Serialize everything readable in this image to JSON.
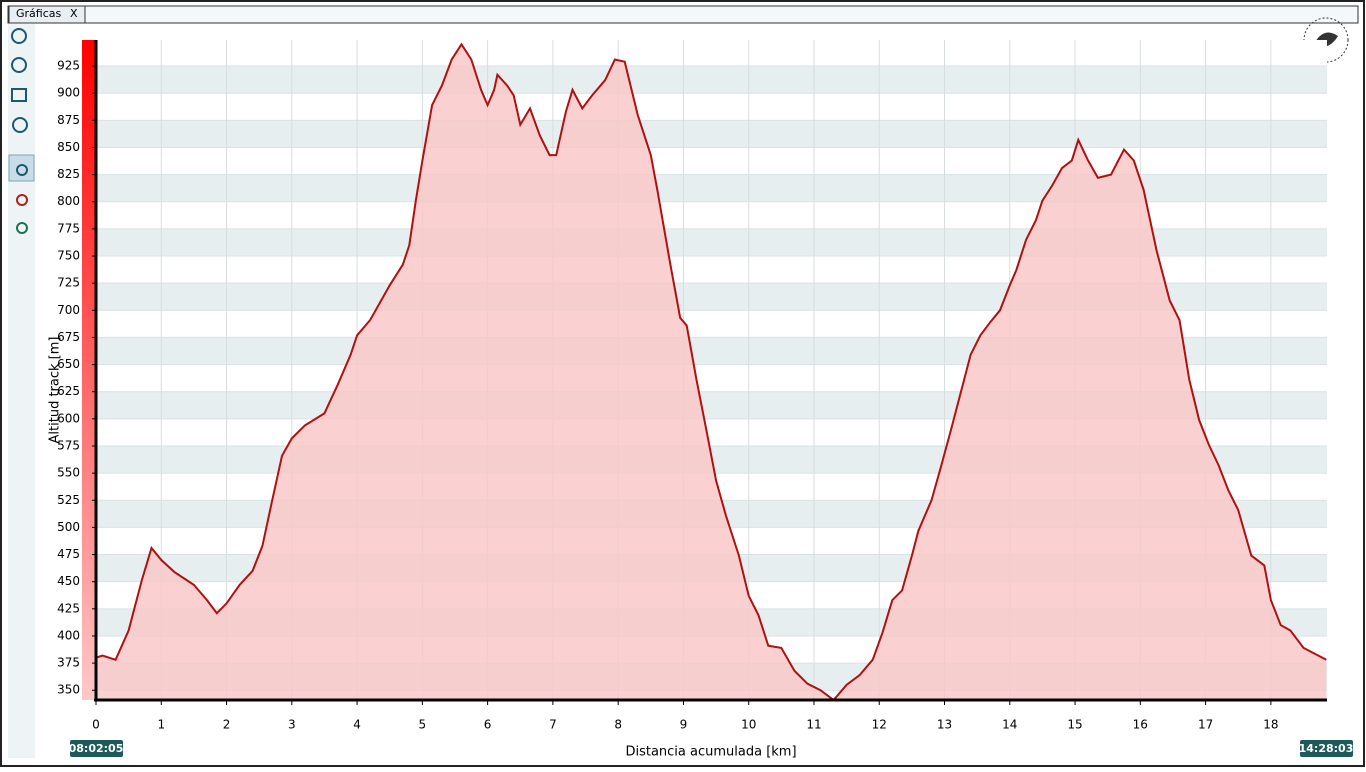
{
  "tab": {
    "title": "Gráficas",
    "close": "X"
  },
  "chart_data": {
    "type": "area",
    "x_label": "Distancia acumulada [km]",
    "y_label": "Altitud track [m]",
    "start_time": "08:02:05",
    "end_time": "14:28:03",
    "x": [
      0,
      0.1,
      0.3,
      0.5,
      0.7,
      0.85,
      1.0,
      1.2,
      1.5,
      1.7,
      1.85,
      2.0,
      2.2,
      2.4,
      2.55,
      2.7,
      2.85,
      3.0,
      3.2,
      3.5,
      3.7,
      3.9,
      4.0,
      4.2,
      4.35,
      4.5,
      4.7,
      4.8,
      4.9,
      5.0,
      5.15,
      5.3,
      5.45,
      5.6,
      5.75,
      5.9,
      6.0,
      6.1,
      6.15,
      6.3,
      6.4,
      6.5,
      6.65,
      6.8,
      6.95,
      7.05,
      7.2,
      7.3,
      7.45,
      7.6,
      7.8,
      7.95,
      8.1,
      8.3,
      8.5,
      8.6,
      8.8,
      8.95,
      9.05,
      9.2,
      9.35,
      9.5,
      9.65,
      9.85,
      10.0,
      10.15,
      10.3,
      10.5,
      10.7,
      10.9,
      11.1,
      11.3,
      11.5,
      11.7,
      11.9,
      12.05,
      12.2,
      12.35,
      12.5,
      12.6,
      12.8,
      12.95,
      13.1,
      13.3,
      13.4,
      13.55,
      13.7,
      13.85,
      14.0,
      14.1,
      14.25,
      14.4,
      14.5,
      14.65,
      14.8,
      14.95,
      15.05,
      15.2,
      15.35,
      15.55,
      15.75,
      15.9,
      16.05,
      16.25,
      16.45,
      16.6,
      16.75,
      16.9,
      17.05,
      17.2,
      17.35,
      17.5,
      17.7,
      17.9,
      18.0,
      18.15,
      18.3,
      18.5,
      18.85
    ],
    "series": [
      {
        "name": "Altitud track",
        "color": "#b01010",
        "fill": "#f9c8c8",
        "values": [
          380,
          382,
          378,
          405,
          451,
          481,
          470,
          459,
          447,
          433,
          421,
          430,
          447,
          460,
          483,
          525,
          566,
          582,
          594,
          605,
          631,
          659,
          677,
          691,
          707,
          723,
          742,
          760,
          801,
          838,
          889,
          907,
          931,
          945,
          931,
          903,
          889,
          903,
          917,
          907,
          898,
          871,
          886,
          861,
          843,
          843,
          883,
          903,
          886,
          898,
          912,
          931,
          929,
          880,
          843,
          811,
          742,
          693,
          686,
          636,
          590,
          543,
          511,
          474,
          437,
          419,
          391,
          389,
          368,
          356,
          350,
          341,
          355,
          364,
          378,
          403,
          433,
          442,
          474,
          497,
          525,
          557,
          590,
          636,
          659,
          677,
          689,
          700,
          723,
          737,
          765,
          783,
          801,
          815,
          831,
          838,
          857,
          838,
          822,
          825,
          848,
          838,
          811,
          755,
          709,
          691,
          636,
          599,
          576,
          557,
          534,
          516,
          474,
          465,
          433,
          410,
          405,
          389,
          378
        ]
      }
    ],
    "xlim": [
      0,
      18.86
    ],
    "ylim": [
      341,
      949
    ],
    "xticks": [
      0,
      1,
      2,
      3,
      4,
      5,
      6,
      7,
      8,
      9,
      10,
      11,
      12,
      13,
      14,
      15,
      16,
      17,
      18
    ],
    "yticks": [
      350,
      375,
      400,
      425,
      450,
      475,
      500,
      525,
      550,
      575,
      600,
      625,
      650,
      675,
      700,
      725,
      750,
      775,
      800,
      825,
      850,
      875,
      900,
      925
    ],
    "grid": true
  }
}
